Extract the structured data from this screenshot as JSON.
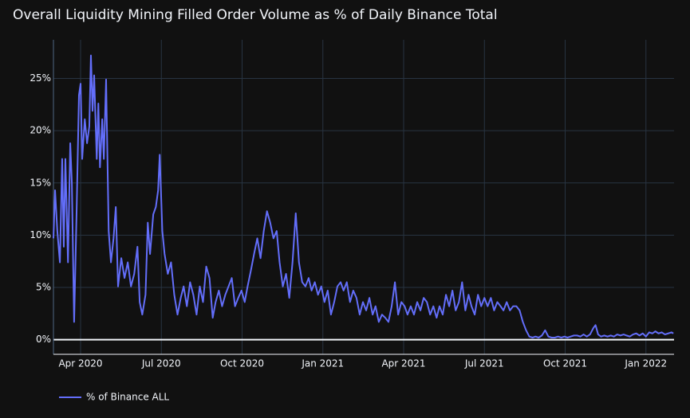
{
  "chart_data": {
    "type": "line",
    "title": "Overall Liquidity Mining Filled Order Volume as % of Daily Binance Total",
    "x": [
      2020.166,
      2020.171,
      2020.178,
      2020.186,
      2020.193,
      2020.198,
      2020.203,
      2020.211,
      2020.218,
      2020.223,
      2020.23,
      2020.238,
      2020.245,
      2020.25,
      2020.255,
      2020.263,
      2020.27,
      2020.277,
      2020.282,
      2020.287,
      2020.292,
      2020.3,
      2020.305,
      2020.31,
      2020.317,
      2020.322,
      2020.329,
      2020.337,
      2020.344,
      2020.352,
      2020.359,
      2020.366,
      2020.376,
      2020.386,
      2020.396,
      2020.406,
      2020.416,
      2020.426,
      2020.433,
      2020.441,
      2020.451,
      2020.458,
      2020.465,
      2020.475,
      2020.483,
      2020.49,
      2020.495,
      2020.503,
      2020.51,
      2020.52,
      2020.53,
      2020.54,
      2020.55,
      2020.56,
      2020.569,
      2020.579,
      2020.589,
      2020.599,
      2020.609,
      2020.619,
      2020.629,
      2020.639,
      2020.649,
      2020.659,
      2020.668,
      2020.678,
      2020.688,
      2020.698,
      2020.708,
      2020.718,
      2020.728,
      2020.738,
      2020.748,
      2020.758,
      2020.767,
      2020.777,
      2020.787,
      2020.797,
      2020.807,
      2020.817,
      2020.827,
      2020.837,
      2020.847,
      2020.857,
      2020.866,
      2020.876,
      2020.886,
      2020.896,
      2020.906,
      2020.916,
      2020.926,
      2020.936,
      2020.946,
      2020.956,
      2020.965,
      2020.975,
      2020.985,
      2020.995,
      2021.005,
      2021.015,
      2021.025,
      2021.035,
      2021.045,
      2021.055,
      2021.064,
      2021.074,
      2021.084,
      2021.094,
      2021.104,
      2021.114,
      2021.124,
      2021.134,
      2021.144,
      2021.154,
      2021.163,
      2021.173,
      2021.183,
      2021.193,
      2021.203,
      2021.213,
      2021.223,
      2021.233,
      2021.243,
      2021.253,
      2021.262,
      2021.272,
      2021.282,
      2021.292,
      2021.302,
      2021.312,
      2021.322,
      2021.332,
      2021.342,
      2021.352,
      2021.361,
      2021.371,
      2021.381,
      2021.391,
      2021.401,
      2021.411,
      2021.421,
      2021.431,
      2021.441,
      2021.451,
      2021.46,
      2021.47,
      2021.48,
      2021.49,
      2021.5,
      2021.51,
      2021.52,
      2021.53,
      2021.54,
      2021.55,
      2021.559,
      2021.569,
      2021.579,
      2021.589,
      2021.599,
      2021.609,
      2021.619,
      2021.629,
      2021.639,
      2021.649,
      2021.658,
      2021.668,
      2021.678,
      2021.688,
      2021.698,
      2021.708,
      2021.718,
      2021.728,
      2021.738,
      2021.748,
      2021.757,
      2021.767,
      2021.777,
      2021.787,
      2021.797,
      2021.807,
      2021.817,
      2021.827,
      2021.837,
      2021.844,
      2021.852,
      2021.861,
      2021.871,
      2021.881,
      2021.891,
      2021.901,
      2021.911,
      2021.921,
      2021.931,
      2021.94,
      2021.95,
      2021.96,
      2021.97,
      2021.98,
      2021.99,
      2022.0,
      2022.01,
      2022.02,
      2022.029,
      2022.039,
      2022.049,
      2022.059,
      2022.069,
      2022.079,
      2022.085
    ],
    "series": [
      {
        "name": "% of Binance ALL",
        "color": "#636efa",
        "values": [
          9.7,
          14.3,
          10.4,
          7.4,
          17.3,
          8.9,
          17.3,
          7.4,
          18.8,
          15,
          1.7,
          12.7,
          23.4,
          24.5,
          17.3,
          21.1,
          18.8,
          20.4,
          27.2,
          21.9,
          25.3,
          17.3,
          22.6,
          16.5,
          21.1,
          17.3,
          24.9,
          10.4,
          7.4,
          9.7,
          12.7,
          5.1,
          7.8,
          5.9,
          7.4,
          5.1,
          6.3,
          8.9,
          3.6,
          2.4,
          4.3,
          11.2,
          8.2,
          12,
          12.7,
          14.3,
          17.7,
          10.4,
          8.2,
          6.3,
          7.4,
          4.3,
          2.4,
          4,
          5.1,
          3.2,
          5.5,
          4.3,
          2.4,
          5.1,
          3.6,
          7,
          5.9,
          2.1,
          3.6,
          4.7,
          3.2,
          4.3,
          5.1,
          5.9,
          3.2,
          4,
          4.7,
          3.6,
          5.1,
          6.6,
          8.2,
          9.7,
          7.8,
          10.4,
          12.3,
          11.2,
          9.7,
          10.4,
          7.4,
          5.1,
          6.3,
          4,
          7.4,
          12.1,
          7.4,
          5.5,
          5.1,
          5.9,
          4.7,
          5.5,
          4.3,
          5.1,
          3.6,
          4.7,
          2.4,
          3.6,
          5.1,
          5.5,
          4.7,
          5.5,
          3.6,
          4.7,
          4,
          2.4,
          3.6,
          2.8,
          4,
          2.4,
          3.2,
          1.7,
          2.4,
          2.1,
          1.7,
          3.2,
          5.5,
          2.4,
          3.6,
          3.2,
          2.4,
          3.2,
          2.4,
          3.6,
          2.8,
          4,
          3.6,
          2.4,
          3.2,
          2.1,
          3.2,
          2.4,
          4.3,
          3.2,
          4.7,
          2.8,
          3.6,
          5.5,
          2.8,
          4.3,
          3.2,
          2.4,
          4.3,
          3.2,
          4,
          3.2,
          4,
          2.8,
          3.6,
          3.2,
          2.8,
          3.6,
          2.8,
          3.2,
          3.2,
          2.8,
          1.7,
          0.9,
          0.3,
          0.2,
          0.3,
          0.2,
          0.4,
          0.9,
          0.3,
          0.2,
          0.2,
          0.3,
          0.2,
          0.3,
          0.2,
          0.3,
          0.4,
          0.4,
          0.3,
          0.5,
          0.3,
          0.5,
          1.1,
          1.4,
          0.5,
          0.3,
          0.4,
          0.3,
          0.4,
          0.3,
          0.5,
          0.4,
          0.5,
          0.4,
          0.3,
          0.5,
          0.6,
          0.4,
          0.6,
          0.3,
          0.7,
          0.6,
          0.8,
          0.6,
          0.7,
          0.5,
          0.6,
          0.7,
          0.6
        ]
      }
    ],
    "xlim": [
      2020.166,
      2022.087
    ],
    "xticks": [
      {
        "value": 2020.25,
        "label": "Apr 2020"
      },
      {
        "value": 2020.5,
        "label": "Jul 2020"
      },
      {
        "value": 2020.75,
        "label": "Oct 2020"
      },
      {
        "value": 2021.0,
        "label": "Jan 2021"
      },
      {
        "value": 2021.25,
        "label": "Apr 2021"
      },
      {
        "value": 2021.5,
        "label": "Jul 2021"
      },
      {
        "value": 2021.75,
        "label": "Oct 2021"
      },
      {
        "value": 2022.0,
        "label": "Jan 2022"
      }
    ],
    "ylim": [
      -1.4,
      28.7
    ],
    "yticks": [
      {
        "value": 0,
        "label": "0%"
      },
      {
        "value": 5,
        "label": "5%"
      },
      {
        "value": 10,
        "label": "10%"
      },
      {
        "value": 15,
        "label": "15%"
      },
      {
        "value": 20,
        "label": "20%"
      },
      {
        "value": 25,
        "label": "25%"
      }
    ],
    "grid": true,
    "zeroline": true,
    "legend": "bottom-left"
  }
}
